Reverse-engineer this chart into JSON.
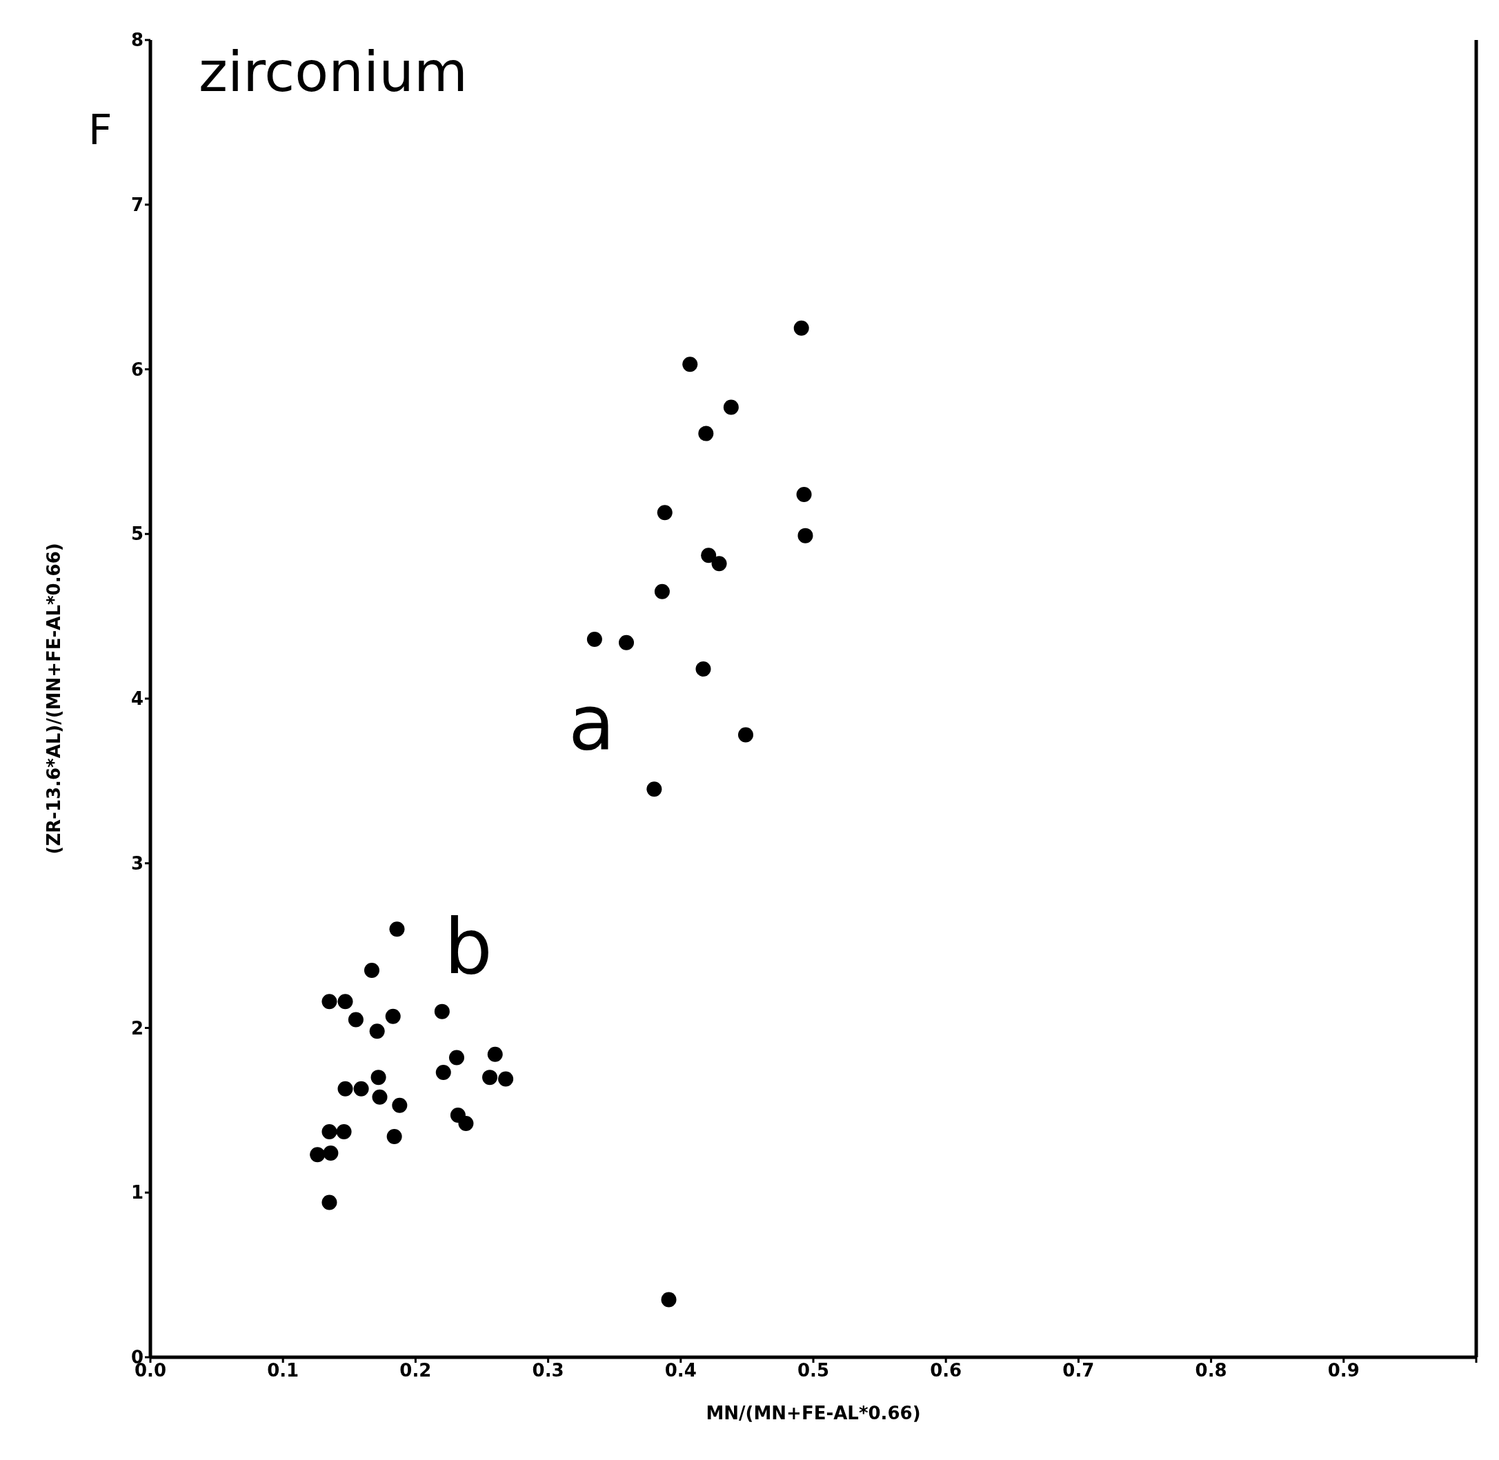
{
  "chart_data": {
    "type": "scatter",
    "title": "zirconium",
    "xlabel": "MN/(MN+FE-AL*0.66)",
    "ylabel": "(ZR-13.6*AL)/(MN+FE-AL*0.66)",
    "annotations": [
      "F",
      "a",
      "b"
    ],
    "xlim": [
      0,
      1
    ],
    "ylim": [
      0,
      8
    ],
    "xticks": [
      {
        "value": 0,
        "label": "0.0"
      },
      0.1,
      0.2,
      0.3,
      0.4,
      0.5,
      0.6,
      0.7,
      0.8,
      0.9,
      {
        "value": 1,
        "label": null
      }
    ],
    "yticks": [
      0,
      1,
      2,
      3,
      4,
      5,
      6,
      7,
      8
    ],
    "grid": false,
    "marker": "circle",
    "series": [
      {
        "color": "#000000",
        "x": [
          0.491,
          0.407,
          0.438,
          0.419,
          0.388,
          0.493,
          0.494,
          0.421,
          0.429,
          0.386,
          0.335,
          0.359,
          0.417,
          0.449,
          0.38,
          0.391,
          0.186,
          0.167,
          0.135,
          0.147,
          0.155,
          0.171,
          0.183,
          0.22,
          0.231,
          0.221,
          0.26,
          0.256,
          0.268,
          0.147,
          0.159,
          0.172,
          0.173,
          0.188,
          0.232,
          0.238,
          0.184,
          0.135,
          0.146,
          0.126,
          0.136,
          0.135
        ],
        "values": [
          6.25,
          6.03,
          5.77,
          5.61,
          5.13,
          5.24,
          4.99,
          4.87,
          4.82,
          4.65,
          4.36,
          4.34,
          4.18,
          3.78,
          3.45,
          0.35,
          2.6,
          2.35,
          2.16,
          2.16,
          2.05,
          1.98,
          2.07,
          2.1,
          1.82,
          1.73,
          1.84,
          1.7,
          1.69,
          1.63,
          1.63,
          1.7,
          1.58,
          1.53,
          1.47,
          1.42,
          1.34,
          1.37,
          1.37,
          1.23,
          1.24,
          0.94
        ]
      }
    ]
  }
}
